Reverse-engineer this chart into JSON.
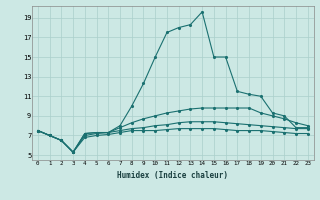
{
  "xlabel": "Humidex (Indice chaleur)",
  "bg_color": "#cce8e4",
  "grid_color": "#aacfcb",
  "line_color": "#1a7070",
  "xlim": [
    -0.5,
    23.5
  ],
  "ylim": [
    4.5,
    20.2
  ],
  "xticks": [
    0,
    1,
    2,
    3,
    4,
    5,
    6,
    7,
    8,
    9,
    10,
    11,
    12,
    13,
    14,
    15,
    16,
    17,
    18,
    19,
    20,
    21,
    22,
    23
  ],
  "yticks": [
    5,
    7,
    9,
    11,
    13,
    15,
    17,
    19
  ],
  "series": [
    {
      "x": [
        0,
        1,
        2,
        3,
        4,
        5,
        6,
        7,
        8,
        9,
        10,
        11,
        12,
        13,
        14,
        15,
        16,
        17,
        18,
        19,
        20,
        21,
        22,
        23
      ],
      "y": [
        7.5,
        7.0,
        6.5,
        5.3,
        7.2,
        7.3,
        7.3,
        8.0,
        10.0,
        12.3,
        15.0,
        17.5,
        18.0,
        18.3,
        19.6,
        15.0,
        15.0,
        11.5,
        11.2,
        11.0,
        9.3,
        9.0,
        7.8,
        7.8
      ]
    },
    {
      "x": [
        0,
        1,
        2,
        3,
        4,
        5,
        6,
        7,
        8,
        9,
        10,
        11,
        12,
        13,
        14,
        15,
        16,
        17,
        18,
        19,
        20,
        21,
        22,
        23
      ],
      "y": [
        7.5,
        7.0,
        6.5,
        5.3,
        7.2,
        7.3,
        7.3,
        7.8,
        8.3,
        8.7,
        9.0,
        9.3,
        9.5,
        9.7,
        9.8,
        9.8,
        9.8,
        9.8,
        9.8,
        9.3,
        9.0,
        8.7,
        8.3,
        8.0
      ]
    },
    {
      "x": [
        0,
        1,
        2,
        3,
        4,
        5,
        6,
        7,
        8,
        9,
        10,
        11,
        12,
        13,
        14,
        15,
        16,
        17,
        18,
        19,
        20,
        21,
        22,
        23
      ],
      "y": [
        7.5,
        7.0,
        6.5,
        5.3,
        7.0,
        7.2,
        7.3,
        7.5,
        7.7,
        7.8,
        8.0,
        8.1,
        8.3,
        8.4,
        8.4,
        8.4,
        8.3,
        8.2,
        8.1,
        8.0,
        7.9,
        7.8,
        7.7,
        7.7
      ]
    },
    {
      "x": [
        0,
        1,
        2,
        3,
        4,
        5,
        6,
        7,
        8,
        9,
        10,
        11,
        12,
        13,
        14,
        15,
        16,
        17,
        18,
        19,
        20,
        21,
        22,
        23
      ],
      "y": [
        7.5,
        7.0,
        6.5,
        5.3,
        6.8,
        7.0,
        7.1,
        7.3,
        7.5,
        7.5,
        7.5,
        7.6,
        7.7,
        7.7,
        7.7,
        7.7,
        7.6,
        7.5,
        7.5,
        7.5,
        7.4,
        7.3,
        7.2,
        7.2
      ]
    }
  ]
}
